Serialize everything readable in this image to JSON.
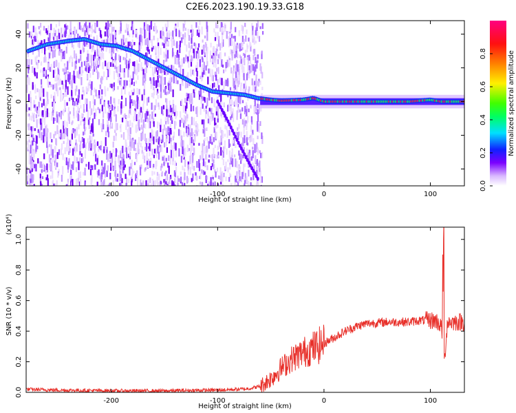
{
  "title": "C2E6.2023.190.19.33.G18",
  "chart_data": [
    {
      "type": "heatmap",
      "xlabel": "Height of straight line (km)",
      "ylabel": "Frequency (Hz)",
      "xlim": [
        -280,
        132
      ],
      "ylim": [
        -50,
        48
      ],
      "xticks": [
        -200,
        -100,
        0,
        100
      ],
      "yticks": [
        -40,
        -20,
        0,
        20,
        40
      ],
      "colorbar": {
        "label": "Normalized spectral amplitude",
        "range": [
          0,
          1
        ],
        "ticks": [
          "0.0",
          "0.2",
          "0.4",
          "0.6",
          "0.8"
        ]
      },
      "trace": {
        "x": [
          -278,
          -260,
          -240,
          -225,
          -210,
          -195,
          -180,
          -165,
          -150,
          -135,
          -120,
          -105,
          -90,
          -75,
          -62,
          -50,
          -40,
          -20,
          -10,
          0,
          40,
          80,
          100,
          110,
          132
        ],
        "y": [
          30,
          34,
          36,
          37,
          34,
          33,
          30,
          25,
          20,
          15,
          10,
          6,
          5,
          4,
          2,
          1,
          0.5,
          1,
          2,
          0,
          0,
          0,
          1,
          0,
          0
        ]
      },
      "branch": {
        "x": [
          -100,
          -90,
          -80,
          -70,
          -62
        ],
        "y": [
          0,
          -12,
          -25,
          -37,
          -46
        ]
      }
    },
    {
      "type": "line",
      "xlabel": "Height of straight line (km)",
      "ylabel": "SNR (10 * v/v)",
      "y_multiplier": "(x10⁴)",
      "xlim": [
        -280,
        132
      ],
      "ylim": [
        0,
        1.08
      ],
      "xticks": [
        -200,
        -100,
        0,
        100
      ],
      "yticks": [
        "0.0",
        "0.2",
        "0.4",
        "0.6",
        "0.8",
        "1.0"
      ],
      "color": "#e8302a",
      "series": {
        "x": [
          -280,
          -250,
          -200,
          -150,
          -100,
          -80,
          -70,
          -60,
          -50,
          -40,
          -30,
          -20,
          -10,
          0,
          10,
          20,
          30,
          40,
          60,
          80,
          90,
          100,
          105,
          110,
          113,
          116,
          120,
          132
        ],
        "y": [
          0.02,
          0.015,
          0.01,
          0.01,
          0.015,
          0.02,
          0.025,
          0.04,
          0.09,
          0.16,
          0.22,
          0.26,
          0.29,
          0.32,
          0.36,
          0.4,
          0.43,
          0.45,
          0.46,
          0.46,
          0.47,
          0.47,
          0.47,
          0.44,
          0.18,
          0.46,
          0.46,
          0.46
        ]
      }
    }
  ]
}
